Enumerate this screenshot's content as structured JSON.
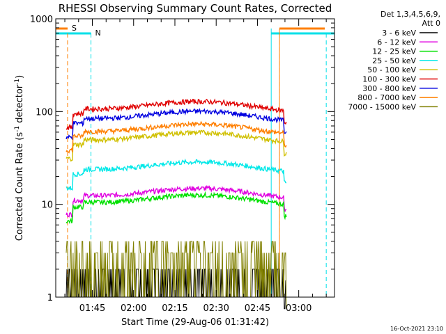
{
  "chart_data": {
    "type": "line",
    "title": "RHESSI Observing Summary Count Rates, Corrected",
    "xlabel": "Start Time (29-Aug-06 01:31:42)",
    "ylabel_main": "Corrected Count Rate (s",
    "ylabel_sup1": "-1",
    "ylabel_mid": " detector",
    "ylabel_sup2": "-1",
    "ylabel_end": ")",
    "y_scale": "log",
    "ylim": [
      1,
      1000
    ],
    "xlim": [
      "01:31:42",
      "03:13:00"
    ],
    "x_ticks": [
      "01:45",
      "02:00",
      "02:15",
      "02:30",
      "02:45",
      "03:00"
    ],
    "y_ticks": [
      "1",
      "10",
      "100",
      "1000"
    ],
    "legend_header": [
      "Det 1,3,4,5,6,9,",
      "Att 0"
    ],
    "legend_position": "right",
    "footer": "16-Oct-2021 23:10",
    "markers": [
      {
        "label": "S",
        "color": "#ff7f00"
      },
      {
        "label": "N",
        "color": "#00e0e8"
      }
    ],
    "series": [
      {
        "name": "3 - 6 keV",
        "color": "#000000",
        "level": 1.6
      },
      {
        "name": "6 - 12 keV",
        "color": "#e000e0",
        "level": 13
      },
      {
        "name": "12 - 25 keV",
        "color": "#00e000",
        "level": 11
      },
      {
        "name": "25 - 50 keV",
        "color": "#00e8e8",
        "level": 25
      },
      {
        "name": "50 - 100 keV",
        "color": "#d0c000",
        "level": 52
      },
      {
        "name": "100 - 300 keV",
        "color": "#e00000",
        "level": 112
      },
      {
        "name": "300 - 800 keV",
        "color": "#0000e0",
        "level": 88
      },
      {
        "name": "800 - 7000 keV",
        "color": "#ff7f00",
        "level": 64
      },
      {
        "name": "7000 - 15000 keV",
        "color": "#808000",
        "level": 2.5
      }
    ]
  }
}
